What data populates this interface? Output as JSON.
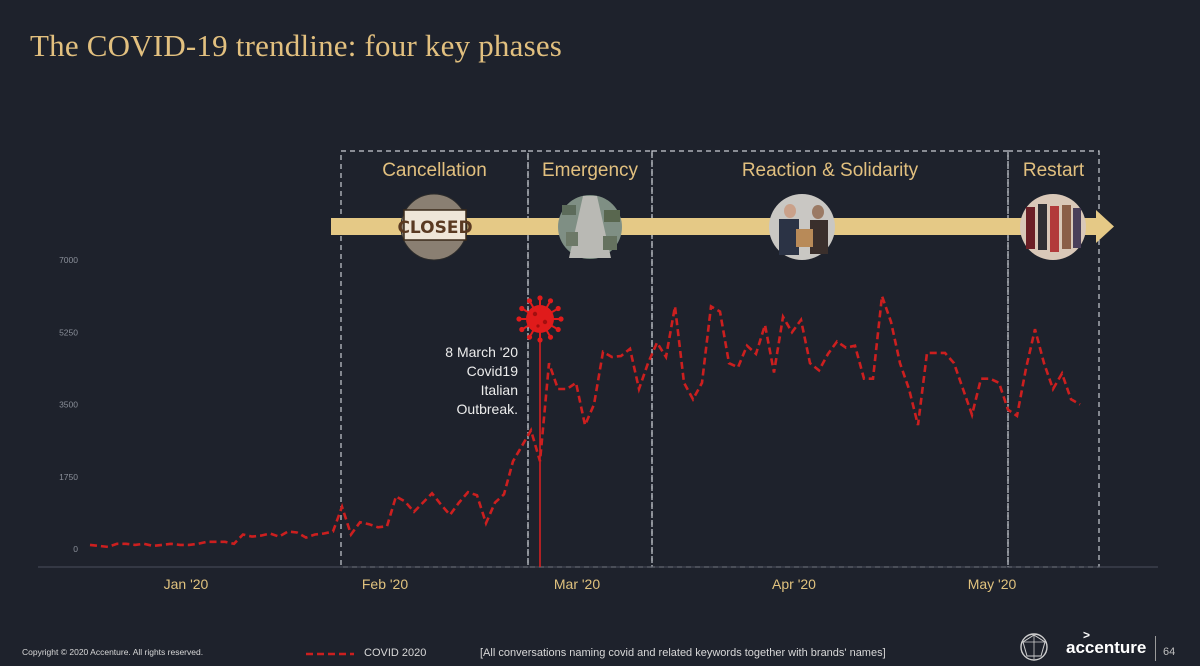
{
  "slide": {
    "title": "The COVID-19 trendline: four key phases",
    "copyright": "Copyright © 2020 Accenture. All rights reserved.",
    "footnote": "[All conversations naming covid and related keywords together with brands' names]",
    "brand": "accenture",
    "brand_mark": ">",
    "page_number": "64"
  },
  "annotation": {
    "lines": [
      "8 March '20",
      "Covid19",
      "Italian",
      "Outbreak."
    ]
  },
  "chart_data": {
    "type": "line",
    "title": "",
    "xlabel": "",
    "ylabel": "",
    "x_tick_labels": [
      "Jan '20",
      "Feb '20",
      "Mar '20",
      "Apr '20",
      "May '20"
    ],
    "y_tick_labels": [
      "0",
      "1750",
      "3500",
      "5250",
      "7000"
    ],
    "ylim": [
      0,
      7000
    ],
    "grid": false,
    "legend": "bottom",
    "series": [
      {
        "name": "COVID 2020",
        "color": "#cc1f1f",
        "style": "dashed",
        "values": [
          100,
          75,
          50,
          125,
          125,
          100,
          125,
          75,
          100,
          125,
          100,
          100,
          125,
          175,
          175,
          175,
          125,
          350,
          300,
          325,
          375,
          300,
          425,
          400,
          275,
          350,
          375,
          425,
          1025,
          350,
          650,
          600,
          525,
          550,
          1275,
          1150,
          900,
          1125,
          1350,
          1075,
          825,
          1125,
          1375,
          1300,
          625,
          1125,
          1325,
          2125,
          2500,
          2875,
          2125,
          4500,
          3875,
          3875,
          4025,
          3000,
          3500,
          4775,
          4650,
          4675,
          4850,
          3875,
          4500,
          5000,
          4650,
          5875,
          4025,
          3625,
          4025,
          5875,
          5750,
          4500,
          4400,
          4925,
          4725,
          5425,
          4275,
          5625,
          5250,
          5550,
          4500,
          4325,
          4725,
          5025,
          4875,
          4925,
          4125,
          4125,
          6125,
          5500,
          4500,
          3875,
          3000,
          4750,
          4750,
          4750,
          4500,
          3875,
          3250,
          4125,
          4125,
          4025,
          3375,
          3225,
          4375,
          5325,
          4500,
          3875,
          4250,
          3625,
          3500
        ]
      }
    ],
    "phases": [
      {
        "label": "Cancellation",
        "image": "closed-sign"
      },
      {
        "label": "Emergency",
        "image": "empty-street"
      },
      {
        "label": "Reaction & Solidarity",
        "image": "food-donation"
      },
      {
        "label": "Restart",
        "image": "shop-mannequins"
      }
    ]
  }
}
